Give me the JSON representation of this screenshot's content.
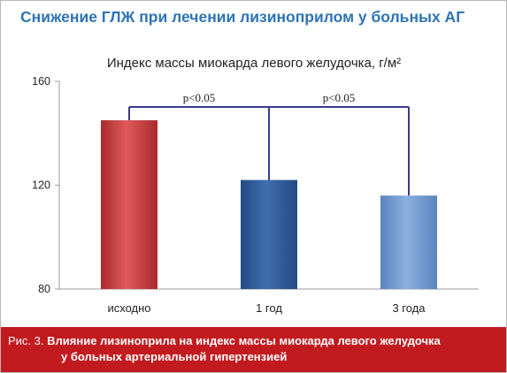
{
  "header": {
    "title": "Снижение ГЛЖ при лечении лизиноприлом у больных АГ"
  },
  "chart_data": {
    "type": "bar",
    "title": "Индекс массы миокарда левого желудочка, г/м²",
    "categories": [
      "исходно",
      "1 год",
      "3 года"
    ],
    "values": [
      145,
      122,
      116
    ],
    "bar_colors": [
      "#c0393c",
      "#2f5c99",
      "#6a96cf"
    ],
    "ylim": [
      80,
      160
    ],
    "yticks": [
      80,
      120,
      160
    ],
    "grid": false,
    "annotations": [
      {
        "text": "p<0.05",
        "from": "исходно",
        "to": "1 год"
      },
      {
        "text": "p<0.05",
        "from": "1 год",
        "to": "3 года"
      }
    ],
    "annotation_color": "#3b3a8e"
  },
  "caption": {
    "label": "Рис. 3.",
    "line1": "Влияние лизиноприла на индекс массы миокарда левого желудочка",
    "line2": "у больных артериальной гипертензией"
  }
}
